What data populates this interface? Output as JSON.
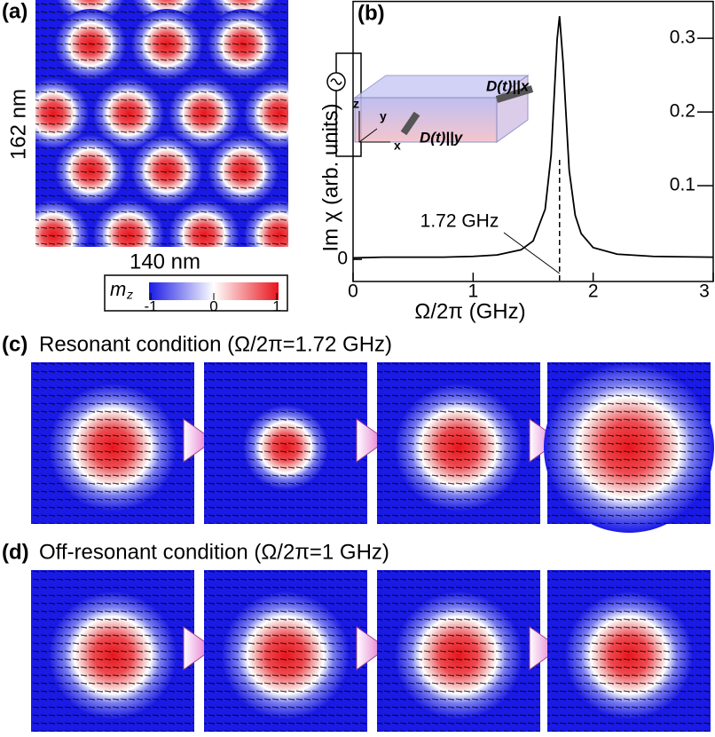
{
  "panels": {
    "a": {
      "label": "(a)",
      "height_label": "162 nm",
      "width_label": "140 nm",
      "colorbar": {
        "symbol": "m",
        "subscript": "z",
        "ticks": [
          -1,
          0,
          1
        ]
      }
    },
    "b": {
      "label": "(b)",
      "inset": {
        "axis_z": "z",
        "axis_y": "y",
        "axis_x": "x",
        "drive_x": "D(t)||x",
        "drive_y": "D(t)||y"
      }
    },
    "c": {
      "label": "(c)",
      "title": "Resonant condition (Ω/2π=1.72 GHz)"
    },
    "d": {
      "label": "(d)",
      "title": "Off-resonant condition (Ω/2π=1 GHz)"
    }
  },
  "chart_data": {
    "type": "line",
    "xlabel": "Ω/2π (GHz)",
    "ylabel": "Im χ (arb. units)",
    "x": [
      0,
      0.25,
      0.5,
      0.75,
      1,
      1.2,
      1.4,
      1.5,
      1.6,
      1.65,
      1.7,
      1.72,
      1.75,
      1.8,
      1.85,
      1.9,
      2,
      2.2,
      2.5,
      3
    ],
    "series": [
      {
        "color": "#000000",
        "values": [
          0.002,
          0.003,
          0.003,
          0.003,
          0.004,
          0.006,
          0.013,
          0.025,
          0.068,
          0.142,
          0.299,
          0.33,
          0.266,
          0.121,
          0.06,
          0.035,
          0.016,
          0.007,
          0.004,
          0.003
        ]
      }
    ],
    "xlim": [
      0,
      3
    ],
    "xticks": [
      0,
      1,
      2,
      3
    ],
    "ylim": [
      -0.03,
      0.35
    ],
    "yticks": [
      0,
      0.1,
      0.2,
      0.3
    ],
    "annotations": [
      {
        "text": "1.72 GHz",
        "x": 1.72
      }
    ]
  }
}
